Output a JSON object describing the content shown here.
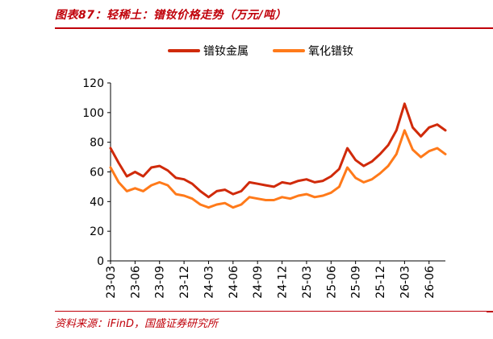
{
  "title": "图表87：轻稀土：镨钕价格走势（万元/吨）",
  "source": "资料来源：iFinD，国盛证券研究所",
  "colors": {
    "brand": "#c0000a",
    "metal": "#d02a0a",
    "oxide": "#ff7a1a",
    "axis": "#000000"
  },
  "chart_data": {
    "type": "line",
    "title": "图表87：轻稀土：镨钕价格走势（万元/吨）",
    "xlabel": "",
    "ylabel": "",
    "ylim": [
      0,
      120
    ],
    "yticks": [
      "0",
      "20",
      "40",
      "60",
      "80",
      "100",
      "120"
    ],
    "xticks": [
      "23-03",
      "23-06",
      "23-09",
      "23-12",
      "24-03",
      "24-06",
      "24-09",
      "24-12",
      "25-03",
      "25-06",
      "25-09",
      "25-12",
      "26-03",
      "26-06"
    ],
    "legend_position": "top-center",
    "grid": false,
    "x": [
      "23-03",
      "23-04",
      "23-05",
      "23-06",
      "23-07",
      "23-08",
      "23-09",
      "23-10",
      "23-11",
      "23-12",
      "24-01",
      "24-02",
      "24-03",
      "24-04",
      "24-05",
      "24-06",
      "24-07",
      "24-08",
      "24-09",
      "24-10",
      "24-11",
      "24-12",
      "25-01",
      "25-02",
      "25-03",
      "25-04",
      "25-05",
      "25-06",
      "25-07",
      "25-08",
      "25-09",
      "25-10",
      "25-11",
      "25-12",
      "26-01",
      "26-02",
      "26-03",
      "26-04",
      "26-05",
      "26-06",
      "26-07",
      "26-08"
    ],
    "series": [
      {
        "name": "镨钕金属",
        "values": [
          76,
          66,
          57,
          60,
          57,
          63,
          64,
          61,
          56,
          55,
          52,
          47,
          43,
          47,
          48,
          45,
          47,
          53,
          52,
          51,
          50,
          53,
          52,
          54,
          55,
          53,
          54,
          57,
          62,
          76,
          68,
          64,
          67,
          72,
          78,
          88,
          106,
          90,
          84,
          90,
          92,
          88
        ]
      },
      {
        "name": "氧化镨钕",
        "values": [
          63,
          53,
          47,
          49,
          47,
          51,
          53,
          51,
          45,
          44,
          42,
          38,
          36,
          38,
          39,
          36,
          38,
          43,
          42,
          41,
          41,
          43,
          42,
          44,
          45,
          43,
          44,
          46,
          50,
          63,
          56,
          53,
          55,
          59,
          64,
          72,
          88,
          75,
          70,
          74,
          76,
          72
        ]
      }
    ]
  }
}
